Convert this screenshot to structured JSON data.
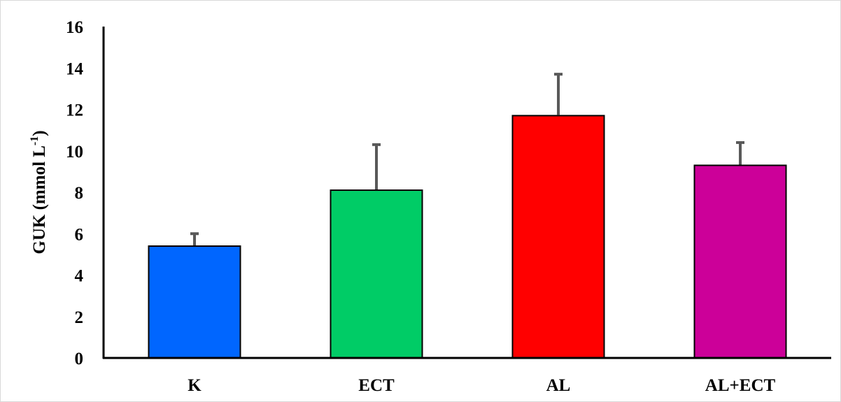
{
  "chart_data": {
    "type": "bar",
    "categories": [
      "K",
      "ECT",
      "AL",
      "AL+ECT"
    ],
    "values": [
      5.4,
      8.1,
      11.7,
      9.3
    ],
    "error_bars": [
      0.6,
      2.2,
      2.0,
      1.1
    ],
    "colors": [
      "#0066ff",
      "#00cc66",
      "#ff0000",
      "#cc0099"
    ],
    "error_bar_color": "#595959",
    "bar_border_color": "#000000",
    "ylabel": {
      "main": "GUK (mmol L",
      "superscript": "-1",
      "suffix": ")"
    },
    "yticks": [
      "0",
      "2",
      "4",
      "6",
      "8",
      "10",
      "12",
      "14",
      "16"
    ],
    "ylim": [
      0,
      16
    ],
    "grid": false,
    "legend": "none"
  }
}
